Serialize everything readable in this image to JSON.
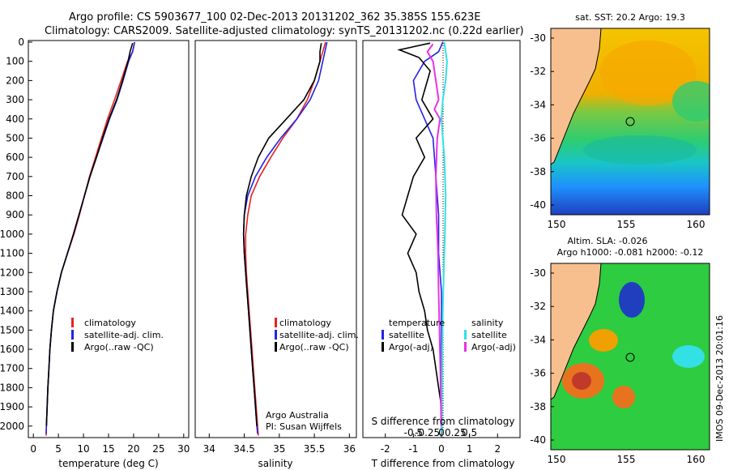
{
  "header": {
    "line1": "Argo profile: CS 5903677_100 02-Dec-2013 20131202_362 35.385S 155.623E",
    "line2": "Climatology: CARS2009. Satellite-adjusted climatology: synTS_20131202.nc (0.22d earlier)"
  },
  "colors": {
    "climatology": "#e8231f",
    "satellite": "#2323e6",
    "argo": "#000000",
    "satellite_salinity": "#33e0e6",
    "argo_salinity": "#e633e6",
    "land": "#f7bf8e"
  },
  "pressure_axis": {
    "ticks": [
      "0",
      "100",
      "200",
      "300",
      "400",
      "500",
      "600",
      "700",
      "800",
      "900",
      "1000",
      "1100",
      "1200",
      "1300",
      "1400",
      "1500",
      "1600",
      "1700",
      "1800",
      "1900",
      "2000"
    ]
  },
  "chart_data": [
    {
      "type": "line",
      "xlabel": "temperature (deg C)",
      "xlim": [
        -1,
        31
      ],
      "ylim": [
        2060,
        0
      ],
      "xticks": [
        "0",
        "5",
        "10",
        "15",
        "20",
        "25",
        "30"
      ],
      "legend": [
        "climatology",
        "satellite-adj. clim.",
        "Argo(..raw -QC)"
      ],
      "series": [
        {
          "name": "climatology",
          "points": [
            [
              20.2,
              0
            ],
            [
              19.8,
              50
            ],
            [
              18.8,
              100
            ],
            [
              17.5,
              200
            ],
            [
              16.2,
              300
            ],
            [
              14.8,
              400
            ],
            [
              13.6,
              500
            ],
            [
              12.4,
              600
            ],
            [
              11.2,
              700
            ],
            [
              10.2,
              800
            ],
            [
              9.2,
              900
            ],
            [
              8.1,
              1000
            ],
            [
              6.8,
              1100
            ],
            [
              5.6,
              1200
            ],
            [
              4.7,
              1300
            ],
            [
              4.0,
              1400
            ],
            [
              3.6,
              1500
            ],
            [
              3.3,
              1600
            ],
            [
              3.1,
              1700
            ],
            [
              2.9,
              1800
            ],
            [
              2.75,
              1900
            ],
            [
              2.6,
              2000
            ],
            [
              2.55,
              2050
            ]
          ]
        },
        {
          "name": "satellite-adj. clim.",
          "points": [
            [
              20.2,
              0
            ],
            [
              19.8,
              50
            ],
            [
              19.0,
              100
            ],
            [
              17.9,
              200
            ],
            [
              16.7,
              300
            ],
            [
              15.2,
              400
            ],
            [
              13.9,
              500
            ],
            [
              12.6,
              600
            ],
            [
              11.3,
              700
            ],
            [
              10.2,
              800
            ],
            [
              9.1,
              900
            ],
            [
              8.0,
              1000
            ],
            [
              6.8,
              1100
            ],
            [
              5.6,
              1200
            ],
            [
              4.7,
              1300
            ],
            [
              4.0,
              1400
            ],
            [
              3.6,
              1500
            ],
            [
              3.3,
              1600
            ],
            [
              3.1,
              1700
            ],
            [
              2.9,
              1800
            ],
            [
              2.75,
              1900
            ],
            [
              2.6,
              2000
            ],
            [
              2.55,
              2040
            ]
          ]
        },
        {
          "name": "Argo(..raw -QC)",
          "points": [
            [
              19.8,
              5
            ],
            [
              19.3,
              50
            ],
            [
              18.9,
              100
            ],
            [
              17.8,
              200
            ],
            [
              16.6,
              300
            ],
            [
              15.1,
              400
            ],
            [
              13.8,
              500
            ],
            [
              12.6,
              600
            ],
            [
              11.3,
              700
            ],
            [
              10.2,
              800
            ],
            [
              9.1,
              900
            ],
            [
              8.0,
              1000
            ],
            [
              6.8,
              1100
            ],
            [
              5.6,
              1200
            ],
            [
              4.7,
              1300
            ],
            [
              4.0,
              1400
            ],
            [
              3.6,
              1500
            ],
            [
              3.3,
              1600
            ],
            [
              3.1,
              1700
            ],
            [
              2.9,
              1800
            ],
            [
              2.75,
              1900
            ],
            [
              2.6,
              2000
            ]
          ]
        }
      ]
    },
    {
      "type": "line",
      "xlabel": "salinity",
      "xlim": [
        33.8,
        36.1
      ],
      "ylim": [
        2060,
        0
      ],
      "xticks": [
        "34",
        "34.5",
        "35",
        "35.5",
        "36"
      ],
      "legend": [
        "climatology",
        "satellite-adj. clim.",
        "Argo(..raw -QC)"
      ],
      "annotation": [
        "Argo Australia",
        "PI: Susan Wijffels"
      ],
      "series": [
        {
          "name": "climatology",
          "points": [
            [
              35.66,
              0
            ],
            [
              35.62,
              50
            ],
            [
              35.58,
              100
            ],
            [
              35.5,
              200
            ],
            [
              35.4,
              300
            ],
            [
              35.25,
              400
            ],
            [
              35.05,
              500
            ],
            [
              34.88,
              600
            ],
            [
              34.72,
              700
            ],
            [
              34.6,
              800
            ],
            [
              34.55,
              900
            ],
            [
              34.52,
              1000
            ],
            [
              34.52,
              1100
            ],
            [
              34.53,
              1200
            ],
            [
              34.55,
              1300
            ],
            [
              34.57,
              1400
            ],
            [
              34.59,
              1500
            ],
            [
              34.61,
              1600
            ],
            [
              34.63,
              1700
            ],
            [
              34.65,
              1800
            ],
            [
              34.67,
              1900
            ],
            [
              34.69,
              2000
            ],
            [
              34.7,
              2050
            ]
          ]
        },
        {
          "name": "satellite-adj. clim.",
          "points": [
            [
              35.68,
              0
            ],
            [
              35.65,
              50
            ],
            [
              35.62,
              100
            ],
            [
              35.56,
              200
            ],
            [
              35.44,
              300
            ],
            [
              35.25,
              400
            ],
            [
              35.02,
              500
            ],
            [
              34.82,
              600
            ],
            [
              34.66,
              700
            ],
            [
              34.55,
              800
            ],
            [
              34.5,
              900
            ],
            [
              34.49,
              1000
            ],
            [
              34.5,
              1100
            ],
            [
              34.52,
              1200
            ],
            [
              34.54,
              1300
            ],
            [
              34.56,
              1400
            ],
            [
              34.58,
              1500
            ],
            [
              34.6,
              1600
            ],
            [
              34.62,
              1700
            ],
            [
              34.64,
              1800
            ],
            [
              34.66,
              1900
            ],
            [
              34.68,
              2000
            ],
            [
              34.69,
              2040
            ]
          ]
        },
        {
          "name": "Argo(..raw -QC)",
          "points": [
            [
              35.6,
              5
            ],
            [
              35.58,
              50
            ],
            [
              35.58,
              100
            ],
            [
              35.5,
              200
            ],
            [
              35.35,
              300
            ],
            [
              35.1,
              400
            ],
            [
              34.85,
              500
            ],
            [
              34.7,
              600
            ],
            [
              34.6,
              700
            ],
            [
              34.53,
              800
            ],
            [
              34.5,
              900
            ],
            [
              34.49,
              1000
            ],
            [
              34.5,
              1100
            ],
            [
              34.52,
              1200
            ],
            [
              34.54,
              1300
            ],
            [
              34.56,
              1400
            ],
            [
              34.58,
              1500
            ],
            [
              34.6,
              1600
            ],
            [
              34.62,
              1700
            ],
            [
              34.64,
              1800
            ],
            [
              34.66,
              1900
            ],
            [
              34.68,
              2000
            ]
          ]
        }
      ]
    },
    {
      "type": "line",
      "xlabel": "T difference from climatology",
      "xlabel2": "S difference from climatology",
      "xlim": [
        -2.8,
        2.8
      ],
      "ylim": [
        2060,
        0
      ],
      "xticks": [
        "-2",
        "-1",
        "0",
        "1",
        "2"
      ],
      "xticks_S": [
        "-0.5",
        "-0.25",
        "0",
        "0.25",
        "0.5"
      ],
      "legend_left": [
        "temperature",
        "satellite",
        "Argo(-adj)"
      ],
      "legend_right": [
        "salinity",
        "satellite",
        "Argo(-adj)"
      ],
      "series": [
        {
          "name": "satellite",
          "points": [
            [
              0.05,
              0
            ],
            [
              -0.1,
              50
            ],
            [
              -0.6,
              100
            ],
            [
              -1.0,
              200
            ],
            [
              -0.9,
              300
            ],
            [
              -0.6,
              400
            ],
            [
              -0.3,
              500
            ],
            [
              -0.2,
              700
            ],
            [
              -0.1,
              900
            ],
            [
              -0.1,
              1100
            ],
            [
              0,
              1300
            ],
            [
              0,
              1500
            ],
            [
              0,
              1700
            ],
            [
              0,
              1900
            ],
            [
              0,
              2040
            ]
          ]
        },
        {
          "name": "Argo(-adj)",
          "points": [
            [
              -0.4,
              5
            ],
            [
              -1.5,
              40
            ],
            [
              -0.8,
              80
            ],
            [
              -0.4,
              150
            ],
            [
              -0.7,
              300
            ],
            [
              -0.3,
              400
            ],
            [
              -0.9,
              500
            ],
            [
              -0.6,
              600
            ],
            [
              -1.0,
              700
            ],
            [
              -1.2,
              800
            ],
            [
              -1.4,
              900
            ],
            [
              -0.9,
              1000
            ],
            [
              -1.2,
              1100
            ],
            [
              -0.9,
              1200
            ],
            [
              -0.8,
              1300
            ],
            [
              -0.6,
              1400
            ],
            [
              -0.5,
              1500
            ],
            [
              -0.3,
              1600
            ],
            [
              -0.2,
              1700
            ],
            [
              -0.1,
              1800
            ],
            [
              0,
              1900
            ],
            [
              0,
              2000
            ]
          ]
        },
        {
          "name": "satellite",
          "points": [
            [
              0.1,
              0
            ],
            [
              0.2,
              100
            ],
            [
              0.15,
              200
            ],
            [
              0.05,
              300
            ],
            [
              0.0,
              400
            ],
            [
              0.05,
              500
            ],
            [
              0.1,
              600
            ],
            [
              0.15,
              800
            ],
            [
              0.12,
              1000
            ],
            [
              0.08,
              1200
            ],
            [
              0.05,
              1400
            ],
            [
              0.03,
              1600
            ],
            [
              0.02,
              1800
            ],
            [
              0.01,
              2040
            ]
          ]
        },
        {
          "name": "Argo(-adj)",
          "points": [
            [
              -0.3,
              10
            ],
            [
              -0.5,
              50
            ],
            [
              -0.3,
              100
            ],
            [
              -0.2,
              200
            ],
            [
              -0.1,
              300
            ],
            [
              -0.25,
              350
            ],
            [
              -0.05,
              400
            ],
            [
              -0.15,
              500
            ],
            [
              -0.2,
              700
            ],
            [
              -0.18,
              900
            ],
            [
              -0.12,
              1100
            ],
            [
              -0.1,
              1300
            ],
            [
              -0.07,
              1500
            ],
            [
              -0.04,
              1700
            ],
            [
              -0.02,
              1900
            ],
            [
              -0.01,
              2000
            ]
          ]
        }
      ]
    }
  ],
  "maps": [
    {
      "title": "sat. SST: 20.2  Argo: 19.3",
      "yticks": [
        "-30",
        "-32",
        "-34",
        "-36",
        "-38",
        "-40"
      ],
      "xticks": [
        "150",
        "155",
        "160"
      ],
      "marker": {
        "lon": 155.623,
        "lat": -35.385
      }
    },
    {
      "title_line1": "Altim. SLA: -0.026",
      "title_line2": "Argo h1000: -0.081 h2000: -0.12",
      "yticks": [
        "-30",
        "-32",
        "-34",
        "-36",
        "-38",
        "-40"
      ],
      "xticks": [
        "150",
        "155",
        "160"
      ],
      "marker": {
        "lon": 155.623,
        "lat": -35.385
      }
    }
  ],
  "footer_vertical": "IMOS 09-Dec-2013 20:01:16"
}
